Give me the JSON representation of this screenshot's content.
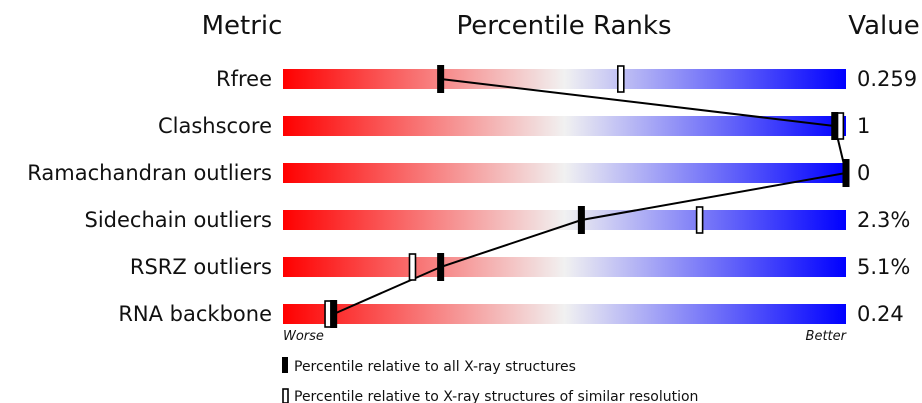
{
  "headers": {
    "metric": "Metric",
    "ranks": "Percentile Ranks",
    "value": "Value"
  },
  "chart_data": {
    "type": "percentile-slider",
    "xlim": [
      0,
      100
    ],
    "axis_left": "Worse",
    "axis_right": "Better",
    "rows": [
      {
        "metric": "Rfree",
        "value": "0.259",
        "all": 28,
        "similar": 60
      },
      {
        "metric": "Clashscore",
        "value": "1",
        "all": 98,
        "similar": 99
      },
      {
        "metric": "Ramachandran outliers",
        "value": "0",
        "all": 100,
        "similar": null
      },
      {
        "metric": "Sidechain outliers",
        "value": "2.3%",
        "all": 53,
        "similar": 74
      },
      {
        "metric": "RSRZ outliers",
        "value": "5.1%",
        "all": 28,
        "similar": 23
      },
      {
        "metric": "RNA backbone",
        "value": "0.24",
        "all": 9,
        "similar": 8
      }
    ],
    "legend": [
      {
        "marker": "filled",
        "label": "Percentile relative to all X-ray structures"
      },
      {
        "marker": "hollow",
        "label": "Percentile relative to X-ray structures of similar resolution"
      }
    ]
  }
}
